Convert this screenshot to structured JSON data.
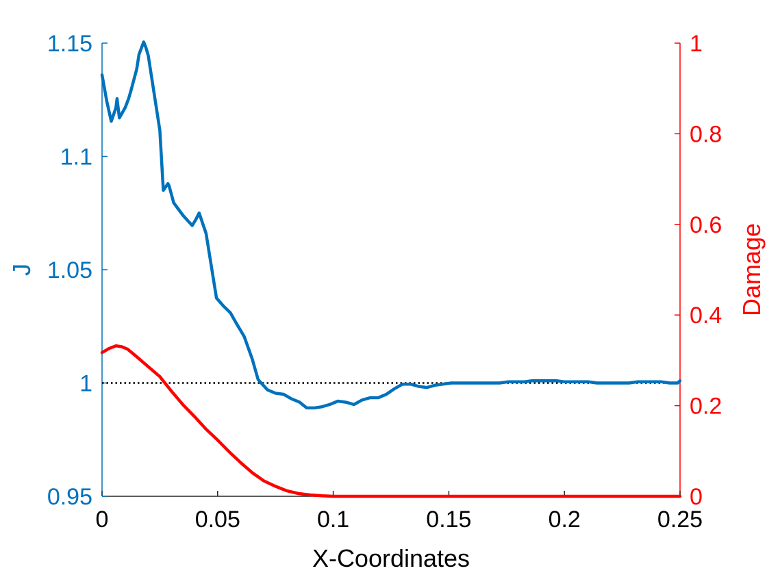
{
  "chart_data": {
    "type": "line",
    "xlabel": "X-Coordinates",
    "ylabel_left": "J",
    "ylabel_right": "Damage",
    "xlim": [
      0,
      0.25
    ],
    "ylim_left": [
      0.95,
      1.15
    ],
    "ylim_right": [
      0,
      1
    ],
    "x_ticks": [
      "0",
      "0.05",
      "0.1",
      "0.15",
      "0.2",
      "0.25"
    ],
    "y_left_ticks": [
      "0.95",
      "1",
      "1.05",
      "1.1",
      "1.15"
    ],
    "y_right_ticks": [
      "0",
      "0.2",
      "0.4",
      "0.6",
      "0.8",
      "1"
    ],
    "grid": false,
    "colors": {
      "j": "#0072BD",
      "damage": "#FF0000",
      "reference": "#000000"
    },
    "reference_line": {
      "axis": "left",
      "y": 1,
      "style": "dotted"
    },
    "series": [
      {
        "axis": "left",
        "x": [
          0,
          0.002,
          0.004,
          0.006,
          0.0065,
          0.0075,
          0.01,
          0.0115,
          0.0125,
          0.015,
          0.016,
          0.018,
          0.019,
          0.02,
          0.025,
          0.0265,
          0.0285,
          0.029,
          0.031,
          0.035,
          0.039,
          0.0405,
          0.042,
          0.045,
          0.0495,
          0.0525,
          0.0555,
          0.058,
          0.0615,
          0.065,
          0.0675,
          0.0715,
          0.075,
          0.0785,
          0.082,
          0.0855,
          0.0885,
          0.092,
          0.095,
          0.0985,
          0.102,
          0.1055,
          0.109,
          0.1125,
          0.116,
          0.1195,
          0.123,
          0.1265,
          0.13,
          0.1335,
          0.137,
          0.1405,
          0.144,
          0.1475,
          0.151,
          0.1545,
          0.158,
          0.1615,
          0.165,
          0.1685,
          0.172,
          0.1755,
          0.179,
          0.1825,
          0.186,
          0.1895,
          0.193,
          0.1965,
          0.2,
          0.2035,
          0.207,
          0.2105,
          0.214,
          0.2175,
          0.221,
          0.2245,
          0.228,
          0.2315,
          0.235,
          0.2385,
          0.242,
          0.2455,
          0.249,
          0.25
        ],
        "y": [
          1.136,
          1.1245,
          1.1155,
          1.1215,
          1.1255,
          1.117,
          1.1215,
          1.1255,
          1.129,
          1.1385,
          1.145,
          1.1505,
          1.148,
          1.1445,
          1.1115,
          1.085,
          1.088,
          1.087,
          1.0795,
          1.074,
          1.0695,
          1.072,
          1.075,
          1.066,
          1.0375,
          1.034,
          1.031,
          1.0265,
          1.0205,
          1.0105,
          1.0015,
          0.997,
          0.9955,
          0.995,
          0.993,
          0.9915,
          0.989,
          0.989,
          0.9895,
          0.9905,
          0.992,
          0.9915,
          0.9905,
          0.9925,
          0.9935,
          0.9935,
          0.995,
          0.9975,
          0.9995,
          0.9995,
          0.9985,
          0.998,
          0.999,
          0.9995,
          1.0,
          1.0,
          1.0,
          1.0,
          1.0,
          1.0,
          1.0,
          1.0005,
          1.0005,
          1.0005,
          1.001,
          1.001,
          1.001,
          1.001,
          1.0005,
          1.0005,
          1.0005,
          1.0005,
          1.0,
          1.0,
          1.0,
          1.0,
          1.0,
          1.0005,
          1.0005,
          1.0005,
          1.0005,
          1.0,
          1.0,
          1.001
        ]
      },
      {
        "axis": "right",
        "x": [
          0,
          0.003,
          0.006,
          0.0085,
          0.011,
          0.015,
          0.02,
          0.025,
          0.03,
          0.035,
          0.04,
          0.045,
          0.05,
          0.055,
          0.06,
          0.065,
          0.07,
          0.075,
          0.08,
          0.085,
          0.09,
          0.095,
          0.1,
          0.105,
          0.11,
          0.12,
          0.15,
          0.2,
          0.25
        ],
        "y": [
          0.317,
          0.326,
          0.332,
          0.33,
          0.325,
          0.308,
          0.286,
          0.264,
          0.232,
          0.202,
          0.176,
          0.148,
          0.124,
          0.098,
          0.074,
          0.052,
          0.034,
          0.022,
          0.012,
          0.006,
          0.003,
          0.001,
          0.0,
          0.0,
          0.0,
          0.0,
          0.0,
          0.0,
          0.0
        ]
      }
    ]
  }
}
